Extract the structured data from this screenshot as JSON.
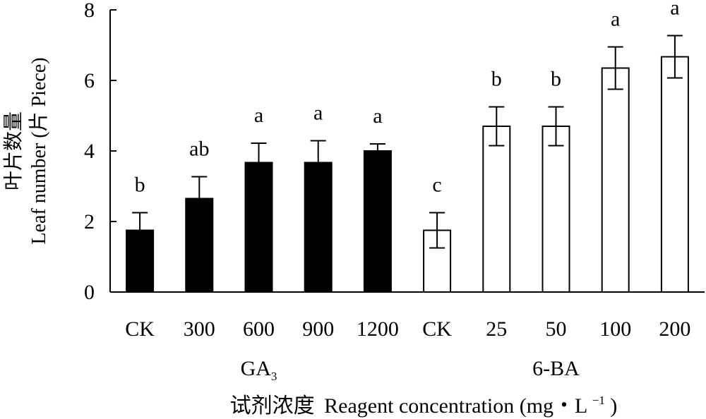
{
  "chart_data": {
    "type": "bar",
    "ylabel_cn": "叶片数量",
    "ylabel_en": "Leaf number (片 Piece)",
    "xlabel_cn": "试剂浓度",
    "xlabel_en": "Reagent concentration (mg・L",
    "xlabel_unit_sup": "−1",
    "xlabel_unit_close": ")",
    "ylim": [
      0,
      8
    ],
    "yticks": [
      "0",
      "2",
      "4",
      "6",
      "8"
    ],
    "groups": [
      {
        "name": "GA",
        "name_sub": "3",
        "fill": "#000000",
        "bars": [
          {
            "category": "CK",
            "value": 1.75,
            "error": 0.5,
            "letter": "b"
          },
          {
            "category": "300",
            "value": 2.65,
            "error": 0.62,
            "letter": "ab"
          },
          {
            "category": "600",
            "value": 3.67,
            "error": 0.55,
            "letter": "a"
          },
          {
            "category": "900",
            "value": 3.67,
            "error": 0.62,
            "letter": "a"
          },
          {
            "category": "1200",
            "value": 4.0,
            "error": 0.2,
            "letter": "a"
          }
        ]
      },
      {
        "name": "6-BA",
        "name_sub": "",
        "fill": "#ffffff",
        "bars": [
          {
            "category": "CK",
            "value": 1.75,
            "error": 0.5,
            "letter": "c"
          },
          {
            "category": "25",
            "value": 4.7,
            "error": 0.55,
            "letter": "b"
          },
          {
            "category": "50",
            "value": 4.7,
            "error": 0.55,
            "letter": "b"
          },
          {
            "category": "100",
            "value": 6.35,
            "error": 0.6,
            "letter": "a"
          },
          {
            "category": "200",
            "value": 6.67,
            "error": 0.6,
            "letter": "a"
          }
        ]
      }
    ]
  }
}
